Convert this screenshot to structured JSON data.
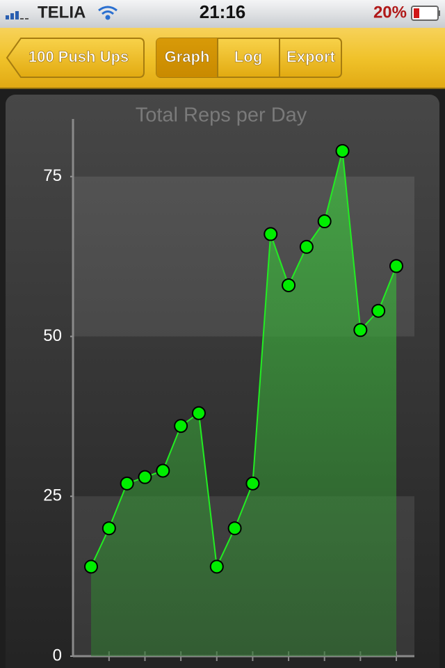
{
  "status_bar": {
    "carrier": "TELIA",
    "time": "21:16",
    "battery": "20%"
  },
  "nav_bar": {
    "back": "100 Push Ups",
    "tabs": [
      "Graph",
      "Log",
      "Export"
    ]
  },
  "chart_data": {
    "type": "line",
    "title": "Total Reps per Day",
    "categories": [
      null,
      null,
      null,
      null,
      null,
      null,
      null,
      null,
      null,
      null,
      null,
      null,
      null,
      null,
      null,
      null,
      null,
      null
    ],
    "values": [
      14,
      20,
      27,
      28,
      29,
      36,
      38,
      14,
      20,
      27,
      66,
      58,
      64,
      68,
      79,
      51,
      54,
      61
    ],
    "color": "#22ee22",
    "ylim": [
      0,
      84
    ],
    "yticks": [
      0,
      25,
      50,
      75
    ],
    "grid": true
  }
}
